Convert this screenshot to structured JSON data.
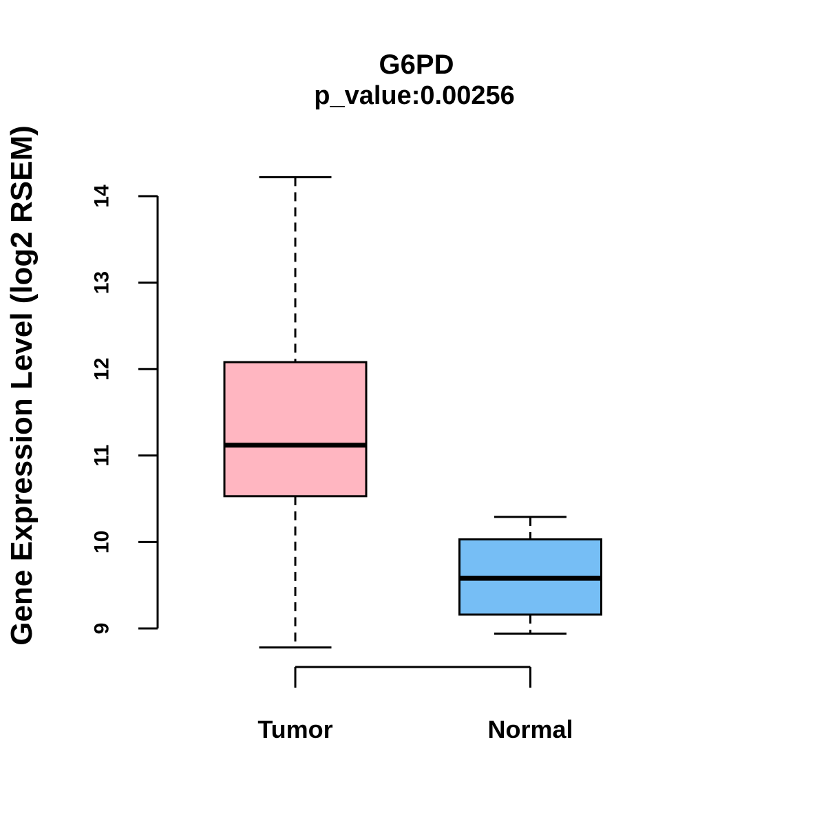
{
  "chart_data": {
    "type": "boxplot",
    "title": "G6PD",
    "subtitle": "p_value:0.00256",
    "ylabel": "Gene Expression Level (log2 RSEM)",
    "xlabel": "",
    "categories": [
      "Tumor",
      "Normal"
    ],
    "y_ticks": [
      9,
      10,
      11,
      12,
      13,
      14
    ],
    "ylim": [
      8.6,
      14.45
    ],
    "grid": false,
    "legend": "none",
    "whisker_style": "dashed",
    "series": [
      {
        "name": "Tumor",
        "min": 8.78,
        "q1": 10.53,
        "median": 11.12,
        "q3": 12.08,
        "max": 14.22,
        "fill_color": "#FFB6C1"
      },
      {
        "name": "Normal",
        "min": 8.94,
        "q1": 9.16,
        "median": 9.58,
        "q3": 10.03,
        "max": 10.29,
        "fill_color": "#76BEF5"
      }
    ],
    "x_axis_bracket": {
      "from": "Tumor",
      "to": "Normal"
    }
  },
  "colors": {
    "line": "#000000",
    "background": "#ffffff",
    "tumor_fill": "#FFB6C1",
    "normal_fill": "#76BEF5"
  }
}
